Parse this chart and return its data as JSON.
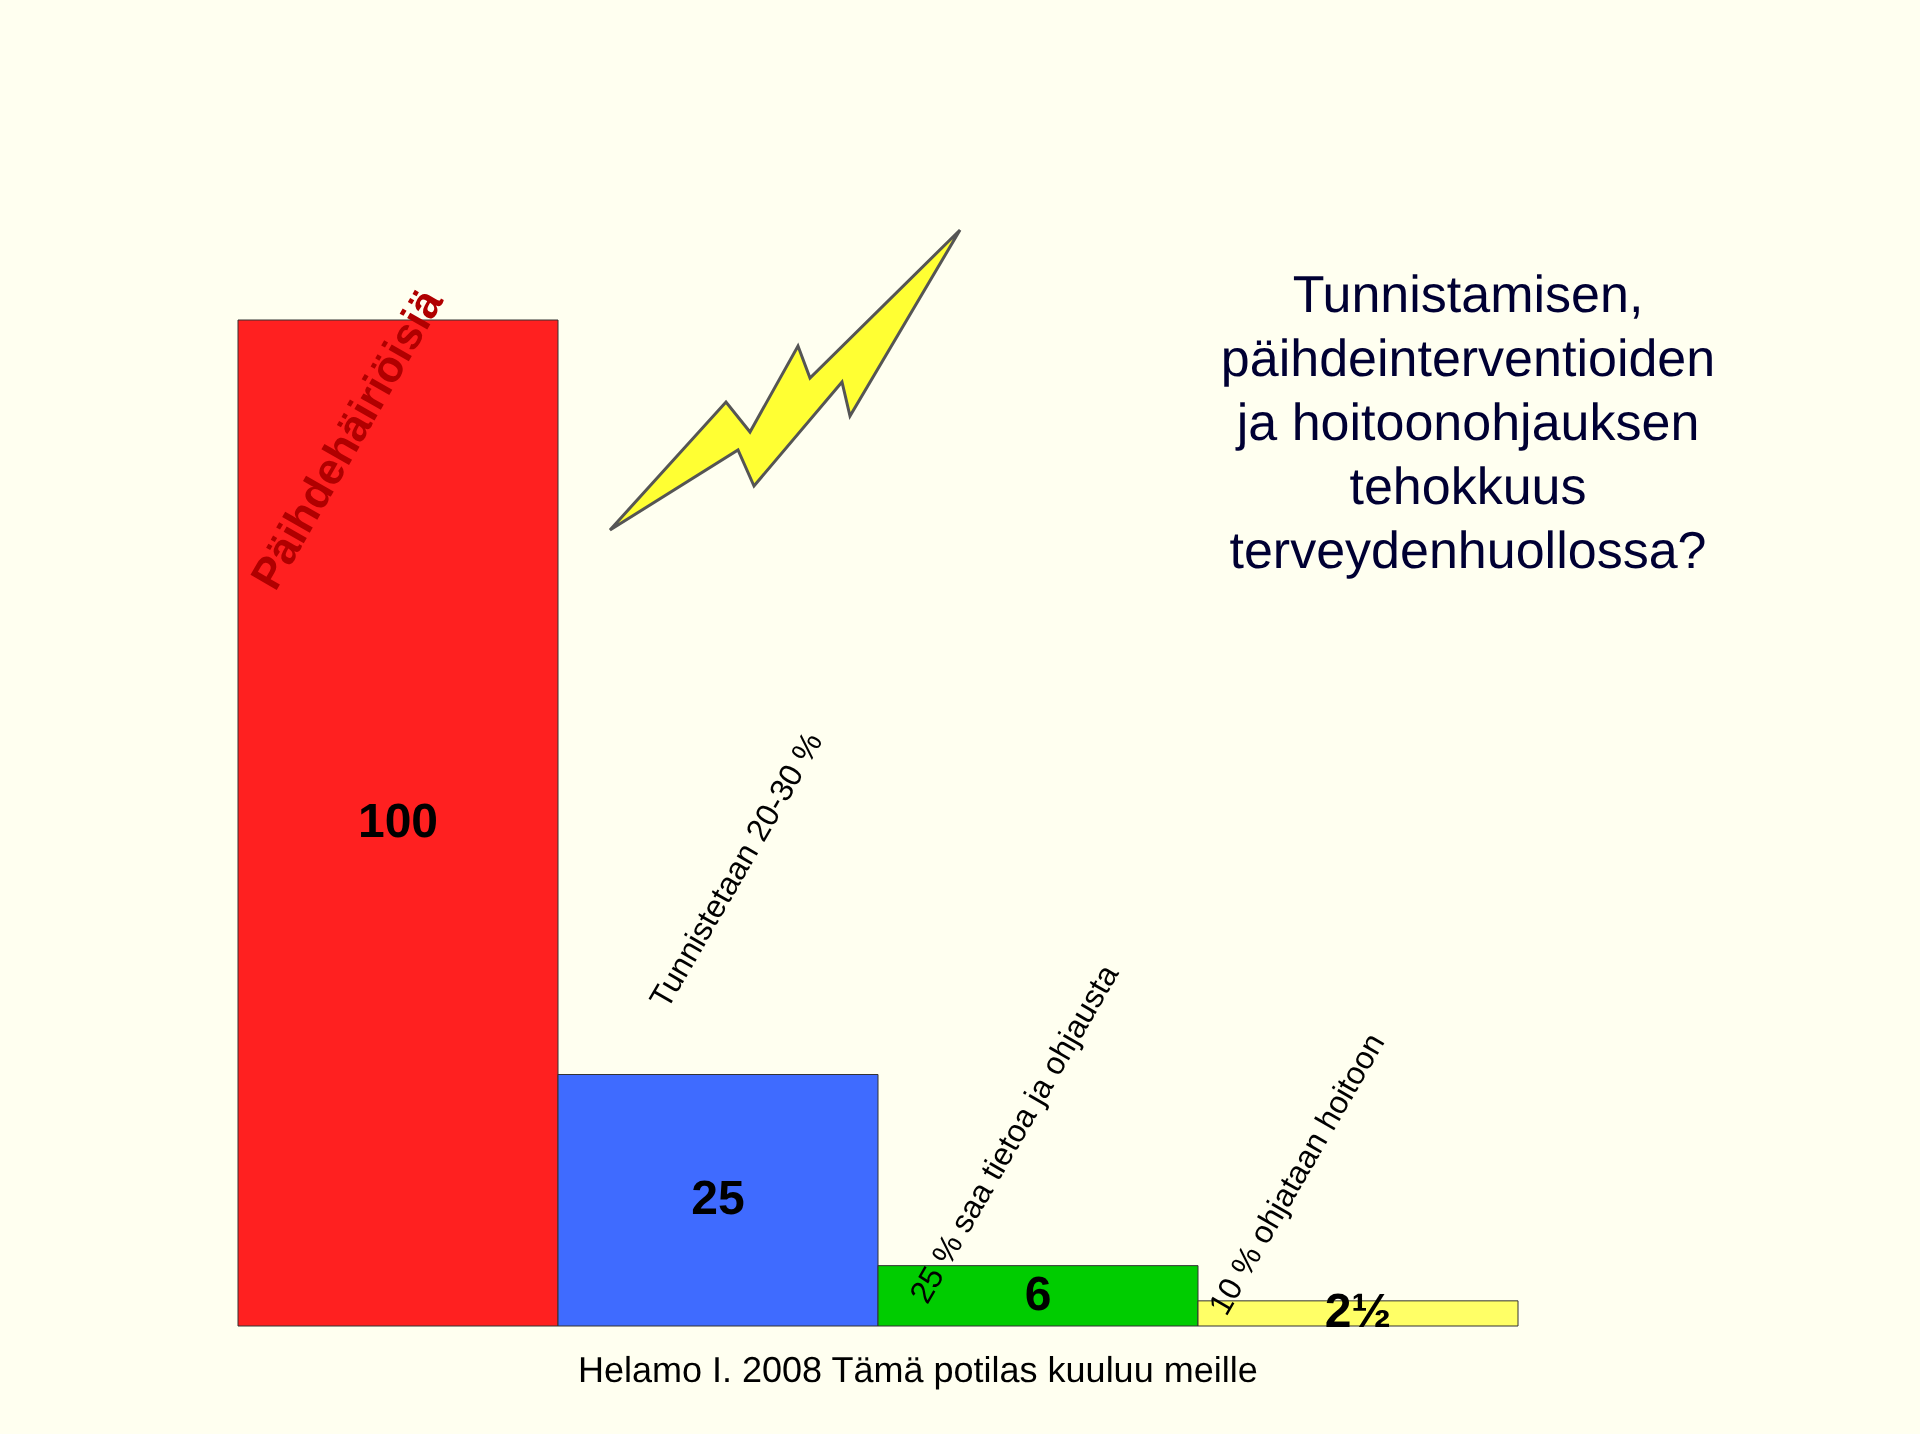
{
  "chart_data": {
    "type": "bar",
    "title": "Tunnistamisen,\npäihdeinterventioiden\nja hoitoonohjauksen\ntehokkuus\nterveydenhuollossa?",
    "categories": [
      null,
      null,
      null,
      null
    ],
    "values": [
      100,
      25,
      6,
      2.5
    ],
    "colors": [
      "#ff2020",
      "#3f6bff",
      "#00cc00",
      "#ffff66"
    ],
    "value_labels": [
      "100",
      "25",
      "6",
      "2½"
    ],
    "annotations": [
      "Päihdehäiriöisiä",
      "Tunnistetaan 20-30 %",
      "25 % saa tietoa ja ohjausta",
      "10 % ohjataan hoitoon",
      "Helamo I. 2008 Tämä potilas kuuluu meille"
    ]
  }
}
